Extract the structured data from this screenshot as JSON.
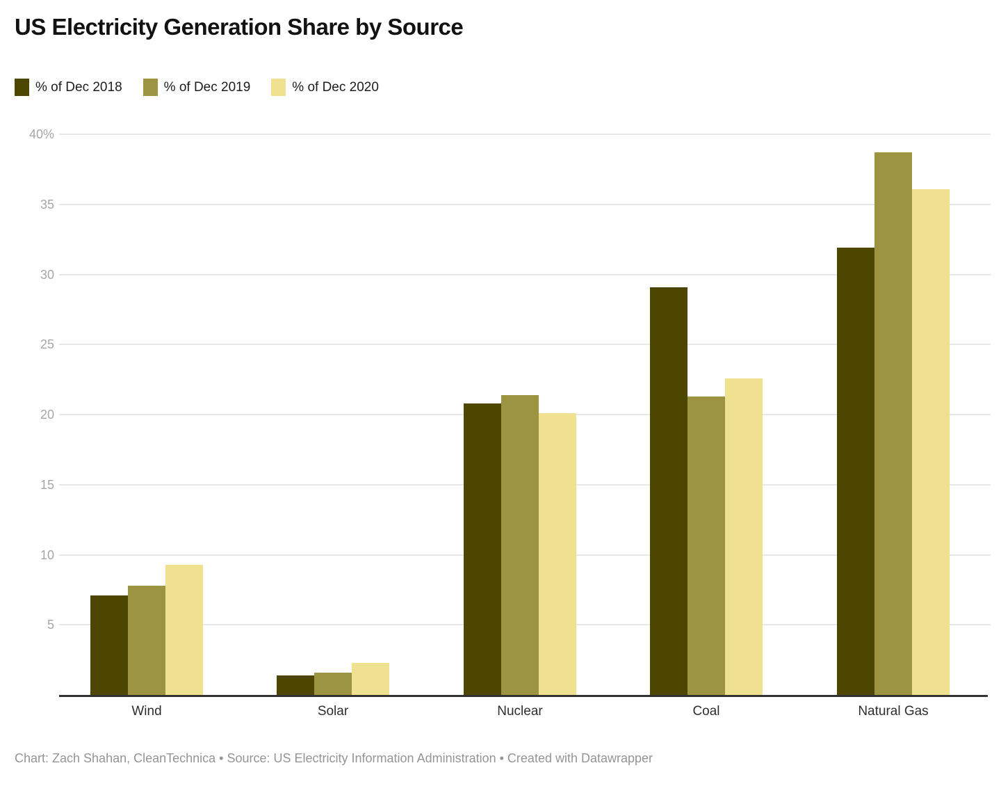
{
  "title": "US Electricity Generation Share by Source",
  "footer": {
    "text": "Chart: Zach Shahan, CleanTechnica • Source: US Electricity Information Administration • Created with Datawrapper"
  },
  "colors": {
    "series_2018": "#4d4600",
    "series_2019": "#9c9440",
    "series_2020": "#efe18f",
    "gridline": "#e7e7e7",
    "axis_baseline": "#333333",
    "ytick_text": "#a6a6a6",
    "xtick_text": "#2e2e2e",
    "footer_text": "#949494",
    "title_text": "#121212"
  },
  "chart_data": {
    "type": "bar",
    "title": "US Electricity Generation Share by Source",
    "xlabel": "",
    "ylabel": "",
    "ylim": [
      0,
      40
    ],
    "grid": true,
    "legend_position": "top-left",
    "categories": [
      "Wind",
      "Solar",
      "Nuclear",
      "Coal",
      "Natural Gas"
    ],
    "series": [
      {
        "name": "% of Dec 2018",
        "color": "#4d4600",
        "values": [
          7.1,
          1.4,
          20.8,
          29.1,
          31.9
        ]
      },
      {
        "name": "% of Dec 2019",
        "color": "#9c9440",
        "values": [
          7.8,
          1.6,
          21.4,
          21.3,
          38.7
        ]
      },
      {
        "name": "% of Dec 2020",
        "color": "#efe18f",
        "values": [
          9.3,
          2.3,
          20.1,
          22.6,
          36.1
        ]
      }
    ],
    "yticks": [
      {
        "value": 40,
        "label": "40%"
      },
      {
        "value": 35,
        "label": "35"
      },
      {
        "value": 30,
        "label": "30"
      },
      {
        "value": 25,
        "label": "25"
      },
      {
        "value": 20,
        "label": "20"
      },
      {
        "value": 15,
        "label": "15"
      },
      {
        "value": 10,
        "label": "10"
      },
      {
        "value": 5,
        "label": "5"
      }
    ]
  }
}
